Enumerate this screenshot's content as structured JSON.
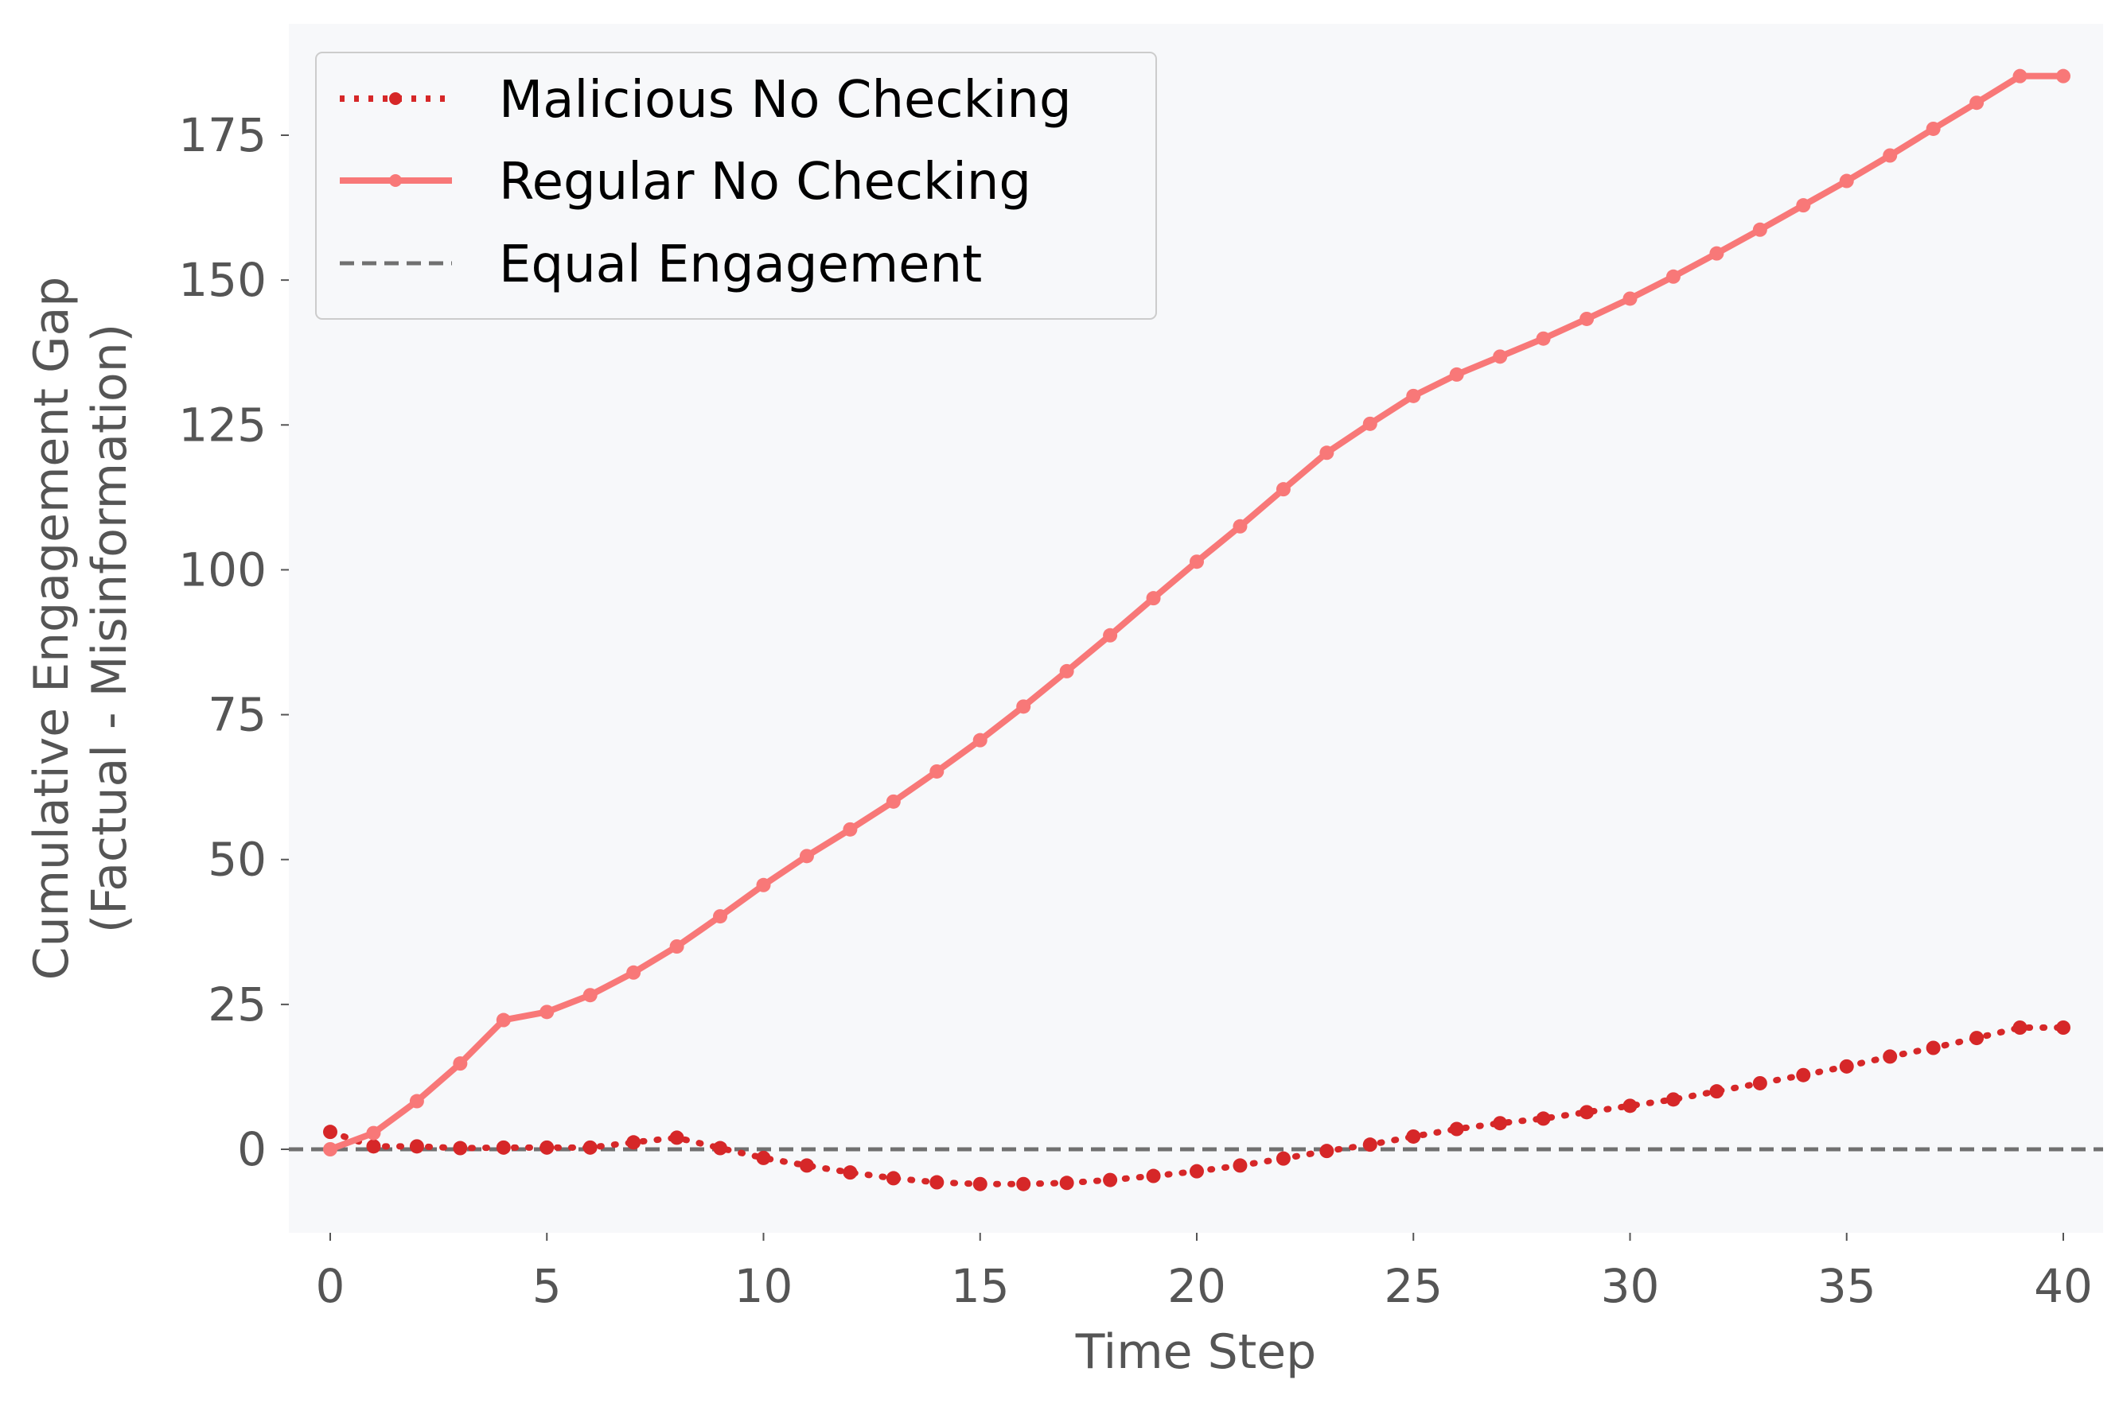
{
  "chart_data": {
    "type": "line",
    "title": "",
    "xlabel": "Time Step",
    "ylabel": [
      "Cumulative Engagement Gap",
      "(Factual - Misinformation)"
    ],
    "xlim": [
      -1,
      41
    ],
    "ylim": [
      -15,
      195
    ],
    "xticks": [
      0,
      5,
      10,
      15,
      20,
      25,
      30,
      35,
      40
    ],
    "yticks": [
      0,
      25,
      50,
      75,
      100,
      125,
      150,
      175
    ],
    "grid": false,
    "legend_position": "top-left",
    "x": [
      0,
      1,
      2,
      3,
      4,
      5,
      6,
      7,
      8,
      9,
      10,
      11,
      12,
      13,
      14,
      15,
      16,
      17,
      18,
      19,
      20,
      21,
      22,
      23,
      24,
      25,
      26,
      27,
      28,
      29,
      30,
      31,
      32,
      33,
      34,
      35,
      36,
      37,
      38,
      39,
      40
    ],
    "series": [
      {
        "name": "Malicious No Checking",
        "style": "dotted",
        "color": "#d62728",
        "values": [
          3.0,
          0.5,
          0.5,
          0.2,
          0.3,
          0.3,
          0.3,
          1.2,
          2.0,
          0.2,
          -1.5,
          -2.8,
          -4.0,
          -5.0,
          -5.7,
          -6.0,
          -6.0,
          -5.8,
          -5.3,
          -4.6,
          -3.8,
          -2.8,
          -1.6,
          -0.3,
          0.8,
          2.2,
          3.5,
          4.5,
          5.3,
          6.4,
          7.5,
          8.6,
          10.0,
          11.4,
          12.8,
          14.3,
          16.0,
          17.5,
          19.2,
          21.0,
          21.0
        ]
      },
      {
        "name": "Regular No Checking",
        "style": "solid",
        "color": "#f87878",
        "values": [
          0.0,
          2.8,
          8.3,
          14.8,
          22.3,
          23.7,
          26.6,
          30.5,
          35.0,
          40.2,
          45.6,
          50.6,
          55.2,
          60.0,
          65.2,
          70.6,
          76.4,
          82.5,
          88.7,
          95.1,
          101.4,
          107.5,
          113.9,
          120.2,
          125.2,
          130.0,
          133.7,
          136.8,
          139.9,
          143.3,
          146.8,
          150.6,
          154.6,
          158.7,
          162.9,
          167.1,
          171.5,
          176.1,
          180.6,
          185.2,
          185.2
        ]
      }
    ],
    "reference_line": {
      "name": "Equal Engagement",
      "y": 0,
      "style": "dashed",
      "color": "#707070"
    },
    "colors": {
      "plot_background": "#f7f8fa",
      "page_background": "#ffffff"
    }
  }
}
